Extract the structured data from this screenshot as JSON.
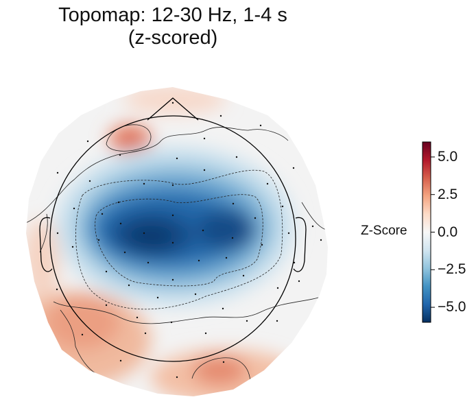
{
  "chart_data": {
    "type": "heatmap",
    "subtype": "scalp-topomap",
    "title_lines": [
      "Topomap: 12-30 Hz, 1-4 s",
      "(z-scored)"
    ],
    "colorbar": {
      "label": "Z-Score",
      "colormap": "RdBu_r",
      "range": [
        -6,
        6
      ],
      "ticks": [
        5.0,
        2.5,
        0.0,
        -2.5,
        -5.0
      ],
      "tick_labels": [
        "5.0",
        "2.5",
        "0.0",
        "−2.5",
        "−5.0"
      ]
    },
    "contour_levels": [
      -4,
      -2,
      0,
      2
    ],
    "value_range_shown": [
      -6,
      3
    ],
    "regions": [
      {
        "name": "central bilateral",
        "z": -5.5
      },
      {
        "name": "left frontal pole",
        "z": 2.5
      },
      {
        "name": "right occipital",
        "z": 2.0
      },
      {
        "name": "left temporal-occipital",
        "z": 1.5
      }
    ]
  }
}
